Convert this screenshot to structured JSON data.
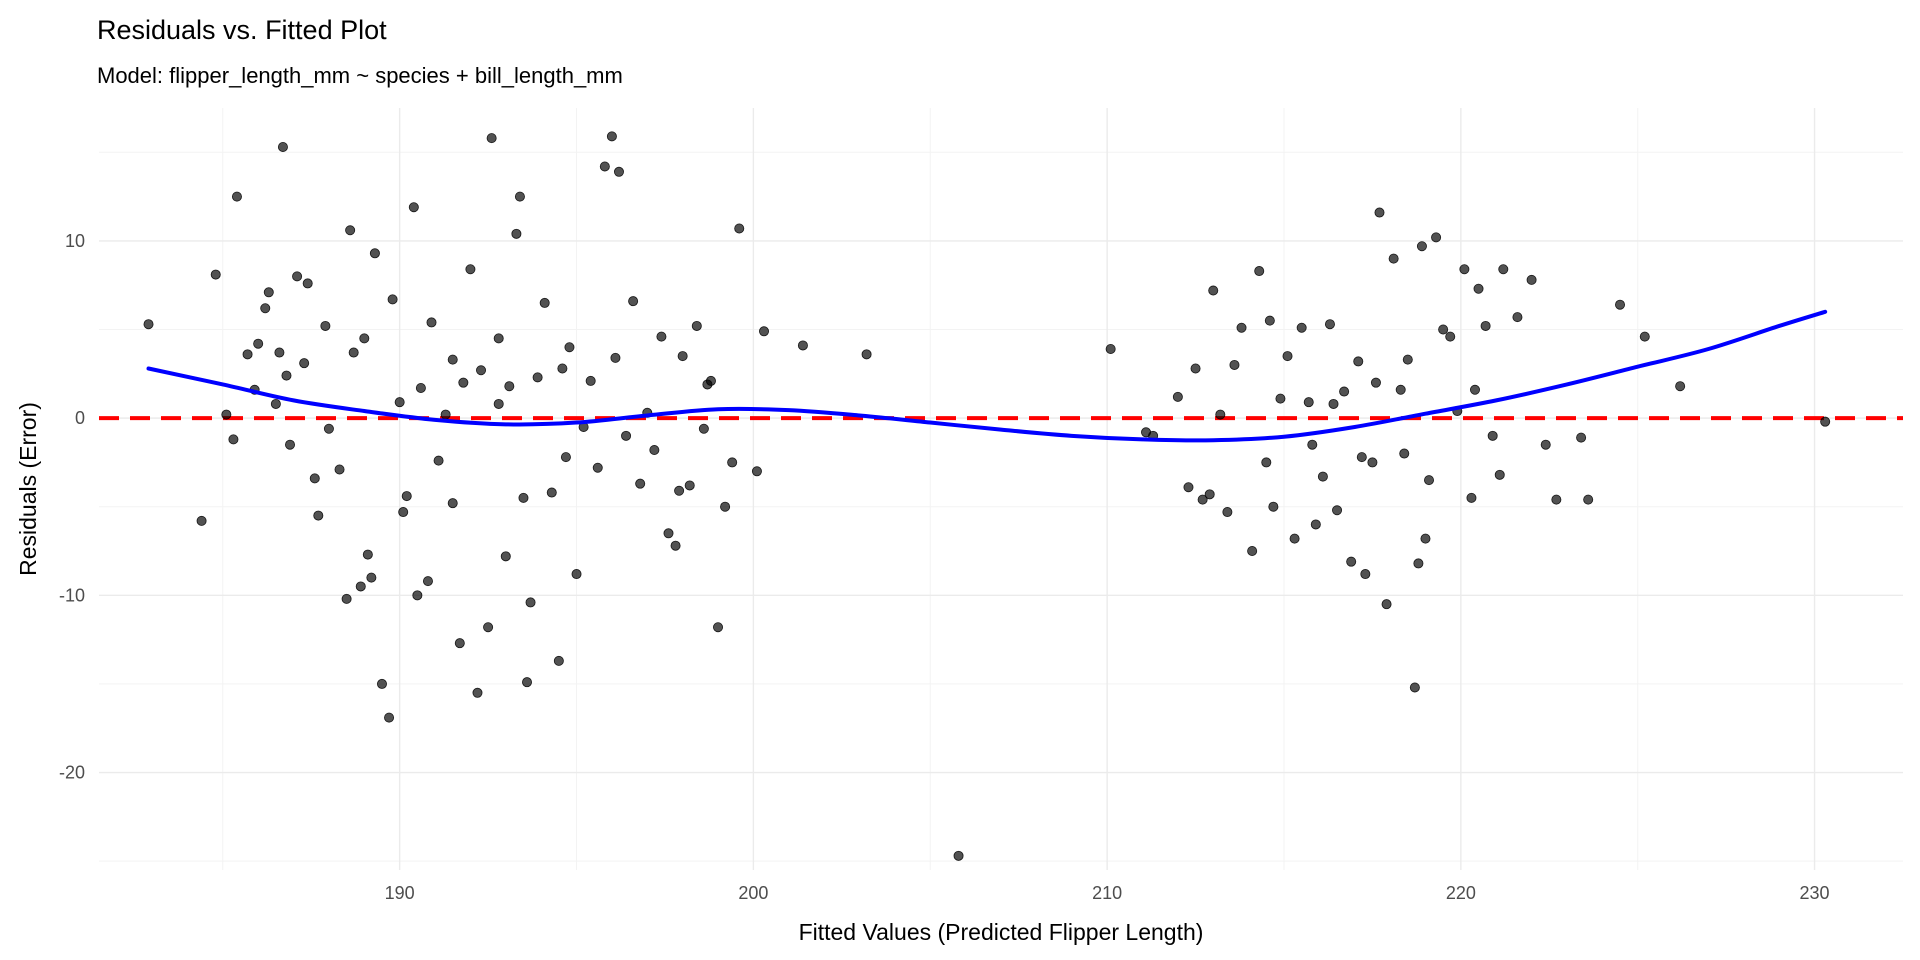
{
  "chart_data": {
    "type": "scatter",
    "title": "Residuals vs. Fitted Plot",
    "subtitle": "Model: flipper_length_mm ~ species + bill_length_mm",
    "xlabel": "Fitted Values (Predicted Flipper Length)",
    "ylabel": "Residuals (Error)",
    "xlim": [
      181.5,
      232.5
    ],
    "ylim": [
      -25.5,
      17.5
    ],
    "x_ticks": [
      190,
      200,
      210,
      220,
      230
    ],
    "y_ticks": [
      -20,
      -10,
      0,
      10
    ],
    "grid": true,
    "legend": "none",
    "colors": {
      "points": "#000000",
      "smooth": "#0000ff",
      "reference": "#ff0000",
      "grid": "#ebebeb"
    },
    "reference_line": {
      "y": 0,
      "style": "dashed"
    },
    "smooth_curve": {
      "x": [
        182.9,
        185,
        187,
        189,
        191,
        193,
        195,
        197,
        199,
        201,
        203,
        205,
        207,
        209,
        211,
        213,
        215,
        217,
        219,
        221,
        223,
        225,
        227,
        229,
        230.3
      ],
      "y": [
        2.8,
        1.9,
        1.0,
        0.4,
        -0.1,
        -0.35,
        -0.25,
        0.15,
        0.5,
        0.45,
        0.15,
        -0.25,
        -0.65,
        -1.0,
        -1.2,
        -1.25,
        -1.05,
        -0.5,
        0.25,
        1.0,
        1.9,
        2.9,
        3.9,
        5.2,
        6.0
      ]
    },
    "series": [
      {
        "x": [
          182.9,
          184.4,
          184.8,
          185.1,
          185.3,
          185.4,
          185.7,
          185.9,
          186.0,
          186.2,
          186.3,
          186.5,
          186.6,
          186.7,
          186.8,
          186.9,
          187.1,
          187.3,
          187.4,
          187.6,
          187.7,
          187.9,
          188.0,
          188.3,
          188.5,
          188.6,
          188.7,
          188.9,
          189.0,
          189.1,
          189.3,
          189.5,
          189.7,
          189.8,
          190.0,
          190.2,
          190.4,
          190.5,
          190.6,
          190.8,
          190.9,
          191.1,
          191.3,
          191.5,
          191.7,
          191.8,
          192.0,
          192.2,
          192.3,
          192.5,
          192.6,
          192.8,
          193.0,
          193.1,
          193.3,
          193.4,
          193.6,
          193.7,
          193.9,
          194.1,
          194.3,
          194.5,
          194.6,
          194.8,
          195.0,
          195.2,
          195.4,
          195.6,
          195.8,
          196.0,
          196.2,
          196.4,
          196.6,
          196.8,
          197.0,
          197.2,
          197.4,
          197.6,
          197.8,
          198.0,
          198.2,
          198.4,
          198.6,
          198.8,
          199.0,
          199.2,
          199.6,
          200.1,
          200.3,
          201.4,
          203.2,
          189.2,
          190.1,
          191.5,
          192.8,
          193.5,
          194.7,
          196.1,
          197.9,
          198.7,
          199.4
        ],
        "y": [
          5.3,
          -5.8,
          8.1,
          0.2,
          -1.2,
          12.5,
          3.6,
          1.6,
          4.2,
          6.2,
          7.1,
          0.8,
          3.7,
          15.3,
          2.4,
          -1.5,
          8.0,
          3.1,
          7.6,
          -3.4,
          -5.5,
          5.2,
          -0.6,
          -2.9,
          -10.2,
          10.6,
          3.7,
          -9.5,
          4.5,
          -7.7,
          9.3,
          -15.0,
          -16.9,
          6.7,
          0.9,
          -4.4,
          11.9,
          -10.0,
          1.7,
          -9.2,
          5.4,
          -2.4,
          0.2,
          -4.8,
          -12.7,
          2.0,
          8.4,
          -15.5,
          2.7,
          -11.8,
          15.8,
          4.5,
          -7.8,
          1.8,
          10.4,
          12.5,
          -14.9,
          -10.4,
          2.3,
          6.5,
          -4.2,
          -13.7,
          2.8,
          4.0,
          -8.8,
          -0.5,
          2.1,
          -2.8,
          14.2,
          15.9,
          13.9,
          -1.0,
          6.6,
          -3.7,
          0.3,
          -1.8,
          4.6,
          -6.5,
          -7.2,
          3.5,
          -3.8,
          5.2,
          -0.6,
          2.1,
          -11.8,
          -5.0,
          10.7,
          -3.0,
          4.9,
          4.1,
          3.6,
          -9.0,
          -5.3,
          3.3,
          0.8,
          -4.5,
          -2.2,
          3.4,
          -4.1,
          1.9,
          -2.5
        ]
      },
      {
        "x": [
          205.8,
          210.1,
          211.1,
          211.3,
          212.0,
          212.3,
          212.5,
          212.7,
          213.0,
          213.2,
          213.4,
          213.6,
          213.8,
          214.1,
          214.3,
          214.5,
          214.7,
          214.9,
          215.1,
          215.3,
          215.5,
          215.7,
          215.9,
          216.1,
          216.3,
          216.5,
          216.7,
          216.9,
          217.1,
          217.3,
          217.5,
          217.7,
          217.9,
          218.1,
          218.3,
          218.5,
          218.7,
          218.9,
          219.1,
          219.3,
          219.5,
          219.7,
          219.9,
          220.1,
          220.3,
          220.5,
          220.7,
          220.9,
          221.2,
          221.6,
          222.0,
          222.4,
          222.7,
          223.4,
          223.6,
          224.5,
          225.2,
          226.2,
          230.3,
          212.9,
          214.6,
          215.8,
          216.4,
          217.6,
          218.4,
          219.0,
          220.4,
          221.1,
          217.2,
          218.8
        ],
        "y": [
          -24.7,
          3.9,
          -0.8,
          -1.0,
          1.2,
          -3.9,
          2.8,
          -4.6,
          7.2,
          0.2,
          -5.3,
          3.0,
          5.1,
          -7.5,
          8.3,
          -2.5,
          -5.0,
          1.1,
          3.5,
          -6.8,
          5.1,
          0.9,
          -6.0,
          -3.3,
          5.3,
          -5.2,
          1.5,
          -8.1,
          3.2,
          -8.8,
          -2.5,
          11.6,
          -10.5,
          9.0,
          1.6,
          3.3,
          -15.2,
          9.7,
          -3.5,
          10.2,
          5.0,
          4.6,
          0.4,
          8.4,
          -4.5,
          7.3,
          5.2,
          -1.0,
          8.4,
          5.7,
          7.8,
          -1.5,
          -4.6,
          -1.1,
          -4.6,
          6.4,
          4.6,
          1.8,
          -0.2,
          -4.3,
          5.5,
          -1.5,
          0.8,
          2.0,
          -2.0,
          -6.8,
          1.6,
          -3.2,
          -2.2,
          -8.2
        ]
      }
    ]
  }
}
